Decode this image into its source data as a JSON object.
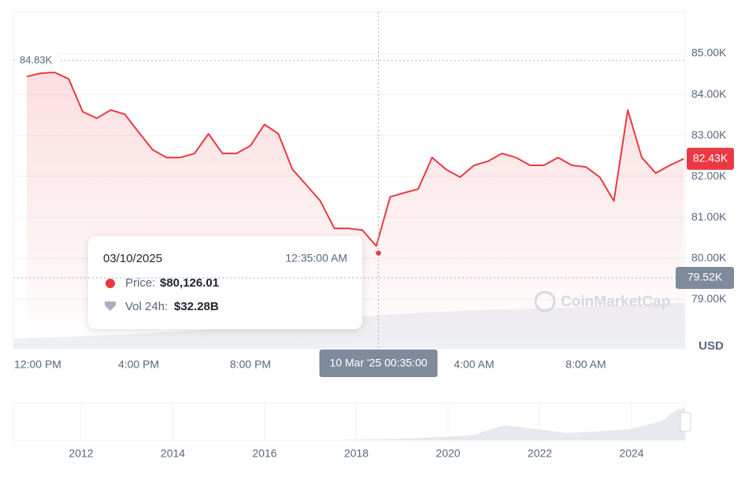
{
  "chart_data": {
    "type": "line",
    "color": "#ea3943",
    "x": [
      0,
      0.5,
      1,
      1.5,
      2,
      2.5,
      3,
      3.5,
      4,
      4.5,
      5,
      5.5,
      6,
      6.5,
      7,
      7.5,
      8,
      8.5,
      9,
      9.5,
      10,
      10.5,
      11,
      11.5,
      12,
      12.5,
      13,
      13.5,
      14,
      14.5,
      15,
      15.5,
      16,
      16.5,
      17,
      17.5,
      18,
      18.5,
      19,
      19.5,
      20,
      20.5,
      21,
      21.5,
      22,
      22.5,
      23,
      23.5
    ],
    "values": [
      84440,
      84520,
      84540,
      84380,
      83580,
      83420,
      83620,
      83520,
      83080,
      82650,
      82460,
      82460,
      82560,
      83040,
      82560,
      82560,
      82750,
      83270,
      83040,
      82170,
      81790,
      81400,
      80730,
      80730,
      80690,
      80300,
      81500,
      81600,
      81690,
      82460,
      82170,
      81980,
      82270,
      82370,
      82560,
      82460,
      82270,
      82270,
      82460,
      82270,
      82230,
      81980,
      81400,
      83620,
      82460,
      82080,
      82270,
      82430
    ],
    "xlim": [
      -0.48,
      23.55
    ],
    "xticks": [
      {
        "value": 0,
        "label": "12:00 PM"
      },
      {
        "value": 4,
        "label": "4:00 PM"
      },
      {
        "value": 8,
        "label": "8:00 PM"
      },
      {
        "value": 16,
        "label": "4:00 AM"
      },
      {
        "value": 20,
        "label": "8:00 AM"
      }
    ],
    "ylim": [
      77790,
      86020
    ],
    "yticks": [
      {
        "value": 79000,
        "label": "79.00K"
      },
      {
        "value": 80000,
        "label": "80.00K"
      },
      {
        "value": 81000,
        "label": "81.00K"
      },
      {
        "value": 82000,
        "label": "82.00K"
      },
      {
        "value": 83000,
        "label": "83.00K"
      },
      {
        "value": 84000,
        "label": "84.00K"
      },
      {
        "value": 85000,
        "label": "85.00K"
      }
    ],
    "grid": true,
    "y_unit": "USD",
    "high": {
      "value": 84830,
      "label": "84.83K"
    },
    "low": {
      "value": 79520,
      "label": "79.52K"
    },
    "current": {
      "value": 82430,
      "label": "82.43K"
    },
    "crosshair": {
      "x": 12.58,
      "value": 80126.01,
      "label": "10 Mar '25 00:35:00"
    },
    "tooltip": {
      "date": "03/10/2025",
      "time": "12:35:00 AM",
      "price_label": "Price:",
      "price": "$80,126.01",
      "volume_label": "Vol 24h:",
      "volume": "$32.28B"
    },
    "watermark": "CoinMarketCap",
    "navigator_labels": [
      "2012",
      "2014",
      "2016",
      "2018",
      "2020",
      "2022",
      "2024"
    ]
  }
}
